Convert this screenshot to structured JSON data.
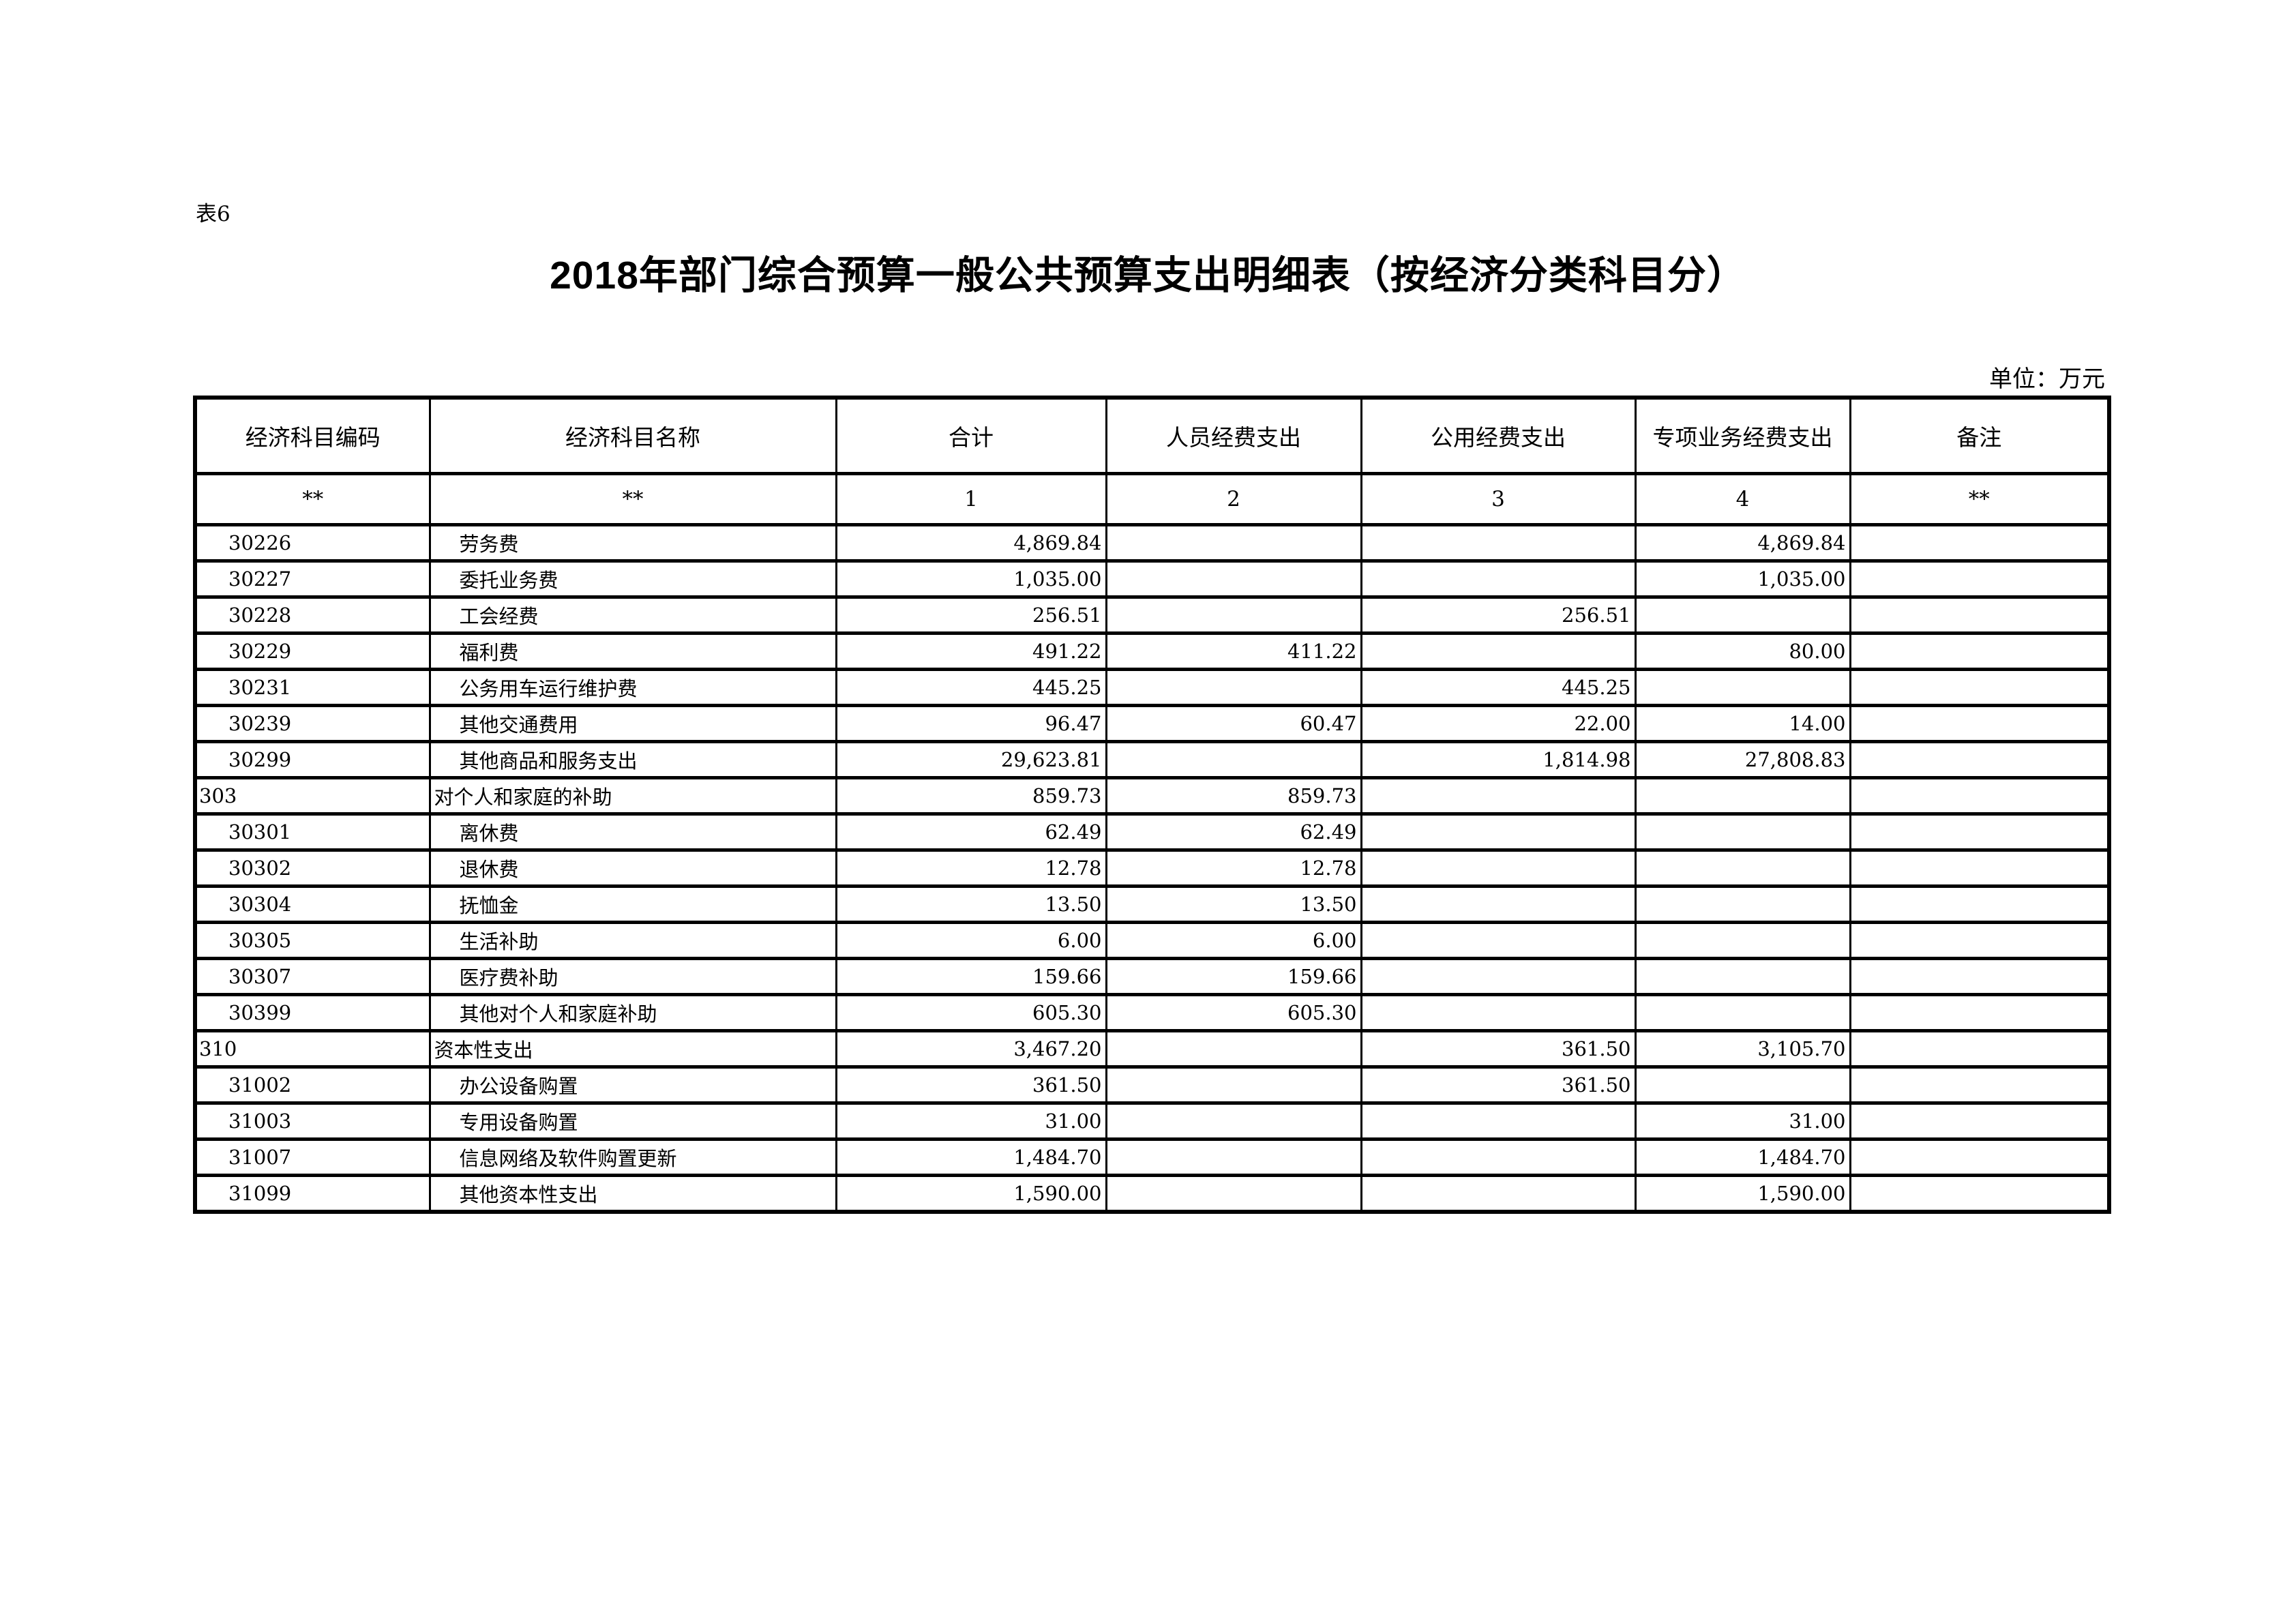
{
  "page": {
    "table_label": "表6",
    "title": "2018年部门综合预算一般公共预算支出明细表（按经济分类科目分）",
    "unit_label": "单位：万元"
  },
  "table": {
    "columns": [
      "经济科目编码",
      "经济科目名称",
      "合计",
      "人员经费支出",
      "公用经费支出",
      "专项业务经费支出",
      "备注"
    ],
    "subheader": [
      "**",
      "**",
      "1",
      "2",
      "3",
      "4",
      "**"
    ],
    "rows": [
      {
        "code": "30226",
        "name": "劳务费",
        "total": "4,869.84",
        "personnel": "",
        "public": "",
        "special": "4,869.84",
        "remark": "",
        "level": "sub"
      },
      {
        "code": "30227",
        "name": "委托业务费",
        "total": "1,035.00",
        "personnel": "",
        "public": "",
        "special": "1,035.00",
        "remark": "",
        "level": "sub"
      },
      {
        "code": "30228",
        "name": "工会经费",
        "total": "256.51",
        "personnel": "",
        "public": "256.51",
        "special": "",
        "remark": "",
        "level": "sub"
      },
      {
        "code": "30229",
        "name": "福利费",
        "total": "491.22",
        "personnel": "411.22",
        "public": "",
        "special": "80.00",
        "remark": "",
        "level": "sub"
      },
      {
        "code": "30231",
        "name": "公务用车运行维护费",
        "total": "445.25",
        "personnel": "",
        "public": "445.25",
        "special": "",
        "remark": "",
        "level": "sub"
      },
      {
        "code": "30239",
        "name": "其他交通费用",
        "total": "96.47",
        "personnel": "60.47",
        "public": "22.00",
        "special": "14.00",
        "remark": "",
        "level": "sub"
      },
      {
        "code": "30299",
        "name": "其他商品和服务支出",
        "total": "29,623.81",
        "personnel": "",
        "public": "1,814.98",
        "special": "27,808.83",
        "remark": "",
        "level": "sub"
      },
      {
        "code": "303",
        "name": "对个人和家庭的补助",
        "total": "859.73",
        "personnel": "859.73",
        "public": "",
        "special": "",
        "remark": "",
        "level": "top"
      },
      {
        "code": "30301",
        "name": "离休费",
        "total": "62.49",
        "personnel": "62.49",
        "public": "",
        "special": "",
        "remark": "",
        "level": "sub"
      },
      {
        "code": "30302",
        "name": "退休费",
        "total": "12.78",
        "personnel": "12.78",
        "public": "",
        "special": "",
        "remark": "",
        "level": "sub"
      },
      {
        "code": "30304",
        "name": "抚恤金",
        "total": "13.50",
        "personnel": "13.50",
        "public": "",
        "special": "",
        "remark": "",
        "level": "sub"
      },
      {
        "code": "30305",
        "name": "生活补助",
        "total": "6.00",
        "personnel": "6.00",
        "public": "",
        "special": "",
        "remark": "",
        "level": "sub"
      },
      {
        "code": "30307",
        "name": "医疗费补助",
        "total": "159.66",
        "personnel": "159.66",
        "public": "",
        "special": "",
        "remark": "",
        "level": "sub"
      },
      {
        "code": "30399",
        "name": "其他对个人和家庭补助",
        "total": "605.30",
        "personnel": "605.30",
        "public": "",
        "special": "",
        "remark": "",
        "level": "sub"
      },
      {
        "code": "310",
        "name": "资本性支出",
        "total": "3,467.20",
        "personnel": "",
        "public": "361.50",
        "special": "3,105.70",
        "remark": "",
        "level": "top"
      },
      {
        "code": "31002",
        "name": "办公设备购置",
        "total": "361.50",
        "personnel": "",
        "public": "361.50",
        "special": "",
        "remark": "",
        "level": "sub"
      },
      {
        "code": "31003",
        "name": "专用设备购置",
        "total": "31.00",
        "personnel": "",
        "public": "",
        "special": "31.00",
        "remark": "",
        "level": "sub"
      },
      {
        "code": "31007",
        "name": "信息网络及软件购置更新",
        "total": "1,484.70",
        "personnel": "",
        "public": "",
        "special": "1,484.70",
        "remark": "",
        "level": "sub"
      },
      {
        "code": "31099",
        "name": "其他资本性支出",
        "total": "1,590.00",
        "personnel": "",
        "public": "",
        "special": "1,590.00",
        "remark": "",
        "level": "sub"
      }
    ]
  }
}
